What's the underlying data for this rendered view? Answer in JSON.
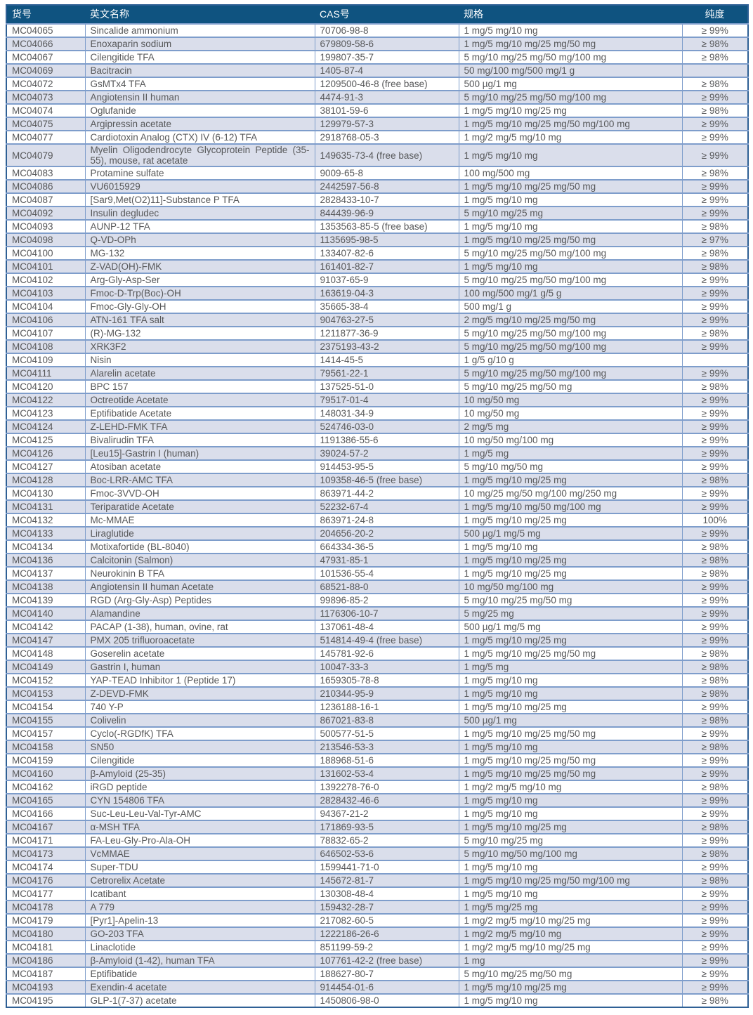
{
  "table": {
    "columns": [
      {
        "key": "catalog",
        "label": "货号"
      },
      {
        "key": "name",
        "label": "英文名称"
      },
      {
        "key": "cas",
        "label": "CAS号"
      },
      {
        "key": "spec",
        "label": "规格"
      },
      {
        "key": "purity",
        "label": "纯度"
      }
    ],
    "rows": [
      {
        "catalog": "MC04065",
        "name": "Sincalide ammonium",
        "cas": "70706-98-8",
        "spec": "1 mg/5 mg/10 mg",
        "purity": "≥ 99%"
      },
      {
        "catalog": "MC04066",
        "name": "Enoxaparin sodium",
        "cas": "679809-58-6",
        "spec": "1 mg/5 mg/10 mg/25 mg/50 mg",
        "purity": "≥ 98%"
      },
      {
        "catalog": "MC04067",
        "name": "Cilengitide TFA",
        "cas": "199807-35-7",
        "spec": "5 mg/10 mg/25 mg/50 mg/100 mg",
        "purity": "≥ 98%"
      },
      {
        "catalog": "MC04069",
        "name": "Bacitracin",
        "cas": "1405-87-4",
        "spec": "50 mg/100 mg/500 mg/1 g",
        "purity": ""
      },
      {
        "catalog": "MC04072",
        "name": "GsMTx4 TFA",
        "cas": "1209500-46-8 (free base)",
        "spec": "500 µg/1 mg",
        "purity": "≥ 98%"
      },
      {
        "catalog": "MC04073",
        "name": "Angiotensin II human",
        "cas": "4474-91-3",
        "spec": "5 mg/10 mg/25 mg/50 mg/100 mg",
        "purity": "≥ 99%"
      },
      {
        "catalog": "MC04074",
        "name": "Oglufanide",
        "cas": "38101-59-6",
        "spec": "1 mg/5 mg/10 mg/25 mg",
        "purity": "≥ 98%"
      },
      {
        "catalog": "MC04075",
        "name": "Argipressin acetate",
        "cas": "129979-57-3",
        "spec": "1 mg/5 mg/10 mg/25 mg/50 mg/100 mg",
        "purity": "≥ 99%"
      },
      {
        "catalog": "MC04077",
        "name": "Cardiotoxin Analog (CTX) IV (6-12) TFA",
        "cas": "2918768-05-3",
        "spec": "1 mg/2 mg/5 mg/10 mg",
        "purity": "≥ 99%"
      },
      {
        "catalog": "MC04079",
        "name": "Myelin Oligodendrocyte Glycoprotein Peptide (35-55), mouse, rat acetate",
        "cas": "149635-73-4 (free base)",
        "spec": "1 mg/5 mg/10 mg",
        "purity": "≥ 99%"
      },
      {
        "catalog": "MC04083",
        "name": "Protamine sulfate",
        "cas": "9009-65-8",
        "spec": "100 mg/500 mg",
        "purity": "≥ 98%"
      },
      {
        "catalog": "MC04086",
        "name": "VU6015929",
        "cas": "2442597-56-8",
        "spec": "1 mg/5 mg/10 mg/25 mg/50 mg",
        "purity": "≥ 99%"
      },
      {
        "catalog": "MC04087",
        "name": "[Sar9,Met(O2)11]-Substance P TFA",
        "cas": "2828433-10-7",
        "spec": "1 mg/5 mg/10 mg",
        "purity": "≥ 99%"
      },
      {
        "catalog": "MC04092",
        "name": "Insulin degludec",
        "cas": "844439-96-9",
        "spec": "5 mg/10 mg/25 mg",
        "purity": "≥ 99%"
      },
      {
        "catalog": "MC04093",
        "name": "AUNP-12 TFA",
        "cas": "1353563-85-5 (free base)",
        "spec": "1 mg/5 mg/10 mg",
        "purity": "≥ 98%"
      },
      {
        "catalog": "MC04098",
        "name": "Q-VD-OPh",
        "cas": "1135695-98-5",
        "spec": "1 mg/5 mg/10 mg/25 mg/50 mg",
        "purity": "≥ 97%"
      },
      {
        "catalog": "MC04100",
        "name": "MG-132",
        "cas": "133407-82-6",
        "spec": "5 mg/10 mg/25 mg/50 mg/100 mg",
        "purity": "≥ 98%"
      },
      {
        "catalog": "MC04101",
        "name": "Z-VAD(OH)-FMK",
        "cas": "161401-82-7",
        "spec": "1 mg/5 mg/10 mg",
        "purity": "≥ 98%"
      },
      {
        "catalog": "MC04102",
        "name": "Arg-Gly-Asp-Ser",
        "cas": "91037-65-9",
        "spec": "5 mg/10 mg/25 mg/50 mg/100 mg",
        "purity": "≥ 99%"
      },
      {
        "catalog": "MC04103",
        "name": "Fmoc-D-Trp(Boc)-OH",
        "cas": "163619-04-3",
        "spec": "100 mg/500 mg/1 g/5 g",
        "purity": "≥ 99%"
      },
      {
        "catalog": "MC04104",
        "name": "Fmoc-Gly-Gly-OH",
        "cas": "35665-38-4",
        "spec": "500 mg/1 g",
        "purity": "≥ 99%"
      },
      {
        "catalog": "MC04106",
        "name": "ATN-161 TFA salt",
        "cas": "904763-27-5",
        "spec": "2 mg/5 mg/10 mg/25 mg/50 mg",
        "purity": "≥ 99%"
      },
      {
        "catalog": "MC04107",
        "name": "(R)-MG-132",
        "cas": "1211877-36-9",
        "spec": "5 mg/10 mg/25 mg/50 mg/100 mg",
        "purity": "≥ 98%"
      },
      {
        "catalog": "MC04108",
        "name": "XRK3F2",
        "cas": "2375193-43-2",
        "spec": "5 mg/10 mg/25 mg/50 mg/100 mg",
        "purity": "≥ 99%"
      },
      {
        "catalog": "MC04109",
        "name": "Nisin",
        "cas": "1414-45-5",
        "spec": "1 g/5 g/10 g",
        "purity": ""
      },
      {
        "catalog": "MC04111",
        "name": "Alarelin acetate",
        "cas": "79561-22-1",
        "spec": "5 mg/10 mg/25 mg/50 mg/100 mg",
        "purity": "≥ 99%"
      },
      {
        "catalog": "MC04120",
        "name": "BPC 157",
        "cas": "137525-51-0",
        "spec": "5 mg/10 mg/25 mg/50 mg",
        "purity": "≥ 98%"
      },
      {
        "catalog": "MC04122",
        "name": "Octreotide Acetate",
        "cas": "79517-01-4",
        "spec": "10 mg/50 mg",
        "purity": "≥ 99%"
      },
      {
        "catalog": "MC04123",
        "name": "Eptifibatide Acetate",
        "cas": "148031-34-9",
        "spec": "10 mg/50 mg",
        "purity": "≥ 99%"
      },
      {
        "catalog": "MC04124",
        "name": "Z-LEHD-FMK TFA",
        "cas": "524746-03-0",
        "spec": "2 mg/5 mg",
        "purity": "≥ 99%"
      },
      {
        "catalog": "MC04125",
        "name": "Bivalirudin TFA",
        "cas": "1191386-55-6",
        "spec": "10 mg/50 mg/100 mg",
        "purity": "≥ 99%"
      },
      {
        "catalog": "MC04126",
        "name": "[Leu15]-Gastrin I (human)",
        "cas": "39024-57-2",
        "spec": "1 mg/5 mg",
        "purity": "≥ 99%"
      },
      {
        "catalog": "MC04127",
        "name": "Atosiban acetate",
        "cas": "914453-95-5",
        "spec": "5 mg/10 mg/50 mg",
        "purity": "≥ 99%"
      },
      {
        "catalog": "MC04128",
        "name": "Boc-LRR-AMC TFA",
        "cas": "109358-46-5 (free base)",
        "spec": "1 mg/5 mg/10 mg/25 mg",
        "purity": "≥ 98%"
      },
      {
        "catalog": "MC04130",
        "name": "Fmoc-3VVD-OH",
        "cas": "863971-44-2",
        "spec": "10 mg/25 mg/50 mg/100 mg/250 mg",
        "purity": "≥ 99%"
      },
      {
        "catalog": "MC04131",
        "name": "Teriparatide Acetate",
        "cas": "52232-67-4",
        "spec": "1 mg/5 mg/10 mg/50 mg/100 mg",
        "purity": "≥ 99%"
      },
      {
        "catalog": "MC04132",
        "name": "Mc-MMAE",
        "cas": "863971-24-8",
        "spec": "1 mg/5 mg/10 mg/25 mg",
        "purity": "100%"
      },
      {
        "catalog": "MC04133",
        "name": "Liraglutide",
        "cas": "204656-20-2",
        "spec": "500 µg/1 mg/5 mg",
        "purity": "≥ 99%"
      },
      {
        "catalog": "MC04134",
        "name": "Motixafortide (BL-8040)",
        "cas": "664334-36-5",
        "spec": "1 mg/5 mg/10 mg",
        "purity": "≥ 98%"
      },
      {
        "catalog": "MC04136",
        "name": "Calcitonin (Salmon)",
        "cas": "47931-85-1",
        "spec": "1 mg/5 mg/10 mg/25 mg",
        "purity": "≥ 98%"
      },
      {
        "catalog": "MC04137",
        "name": "Neurokinin B TFA",
        "cas": "101536-55-4",
        "spec": "1 mg/5 mg/10 mg/25 mg",
        "purity": "≥ 98%"
      },
      {
        "catalog": "MC04138",
        "name": "Angiotensin II human Acetate",
        "cas": "68521-88-0",
        "spec": "10 mg/50 mg/100 mg",
        "purity": "≥ 99%"
      },
      {
        "catalog": "MC04139",
        "name": "RGD (Arg-Gly-Asp) Peptides",
        "cas": "99896-85-2",
        "spec": "5 mg/10 mg/25 mg/50 mg",
        "purity": "≥ 99%"
      },
      {
        "catalog": "MC04140",
        "name": "Alamandine",
        "cas": "1176306-10-7",
        "spec": "5 mg/25 mg",
        "purity": "≥ 99%"
      },
      {
        "catalog": "MC04142",
        "name": "PACAP (1-38), human, ovine, rat",
        "cas": "137061-48-4",
        "spec": "500 µg/1 mg/5 mg",
        "purity": "≥ 99%"
      },
      {
        "catalog": "MC04147",
        "name": "PMX 205 trifluoroacetate",
        "cas": "514814-49-4 (free base)",
        "spec": "1 mg/5 mg/10 mg/25 mg",
        "purity": "≥ 99%"
      },
      {
        "catalog": "MC04148",
        "name": "Goserelin acetate",
        "cas": "145781-92-6",
        "spec": "1 mg/5 mg/10 mg/25 mg/50 mg",
        "purity": "≥ 98%"
      },
      {
        "catalog": "MC04149",
        "name": "Gastrin I, human",
        "cas": "10047-33-3",
        "spec": "1 mg/5 mg",
        "purity": "≥ 98%"
      },
      {
        "catalog": "MC04152",
        "name": "YAP-TEAD Inhibitor 1 (Peptide 17)",
        "cas": "1659305-78-8",
        "spec": "1 mg/5 mg/10 mg",
        "purity": "≥ 98%"
      },
      {
        "catalog": "MC04153",
        "name": "Z-DEVD-FMK",
        "cas": "210344-95-9",
        "spec": "1 mg/5 mg/10 mg",
        "purity": "≥ 98%"
      },
      {
        "catalog": "MC04154",
        "name": "740 Y-P",
        "cas": "1236188-16-1",
        "spec": "1 mg/5 mg/10 mg/25 mg",
        "purity": "≥ 99%"
      },
      {
        "catalog": "MC04155",
        "name": "Colivelin",
        "cas": "867021-83-8",
        "spec": "500 µg/1 mg",
        "purity": "≥ 98%"
      },
      {
        "catalog": "MC04157",
        "name": "Cyclo(-RGDfK) TFA",
        "cas": "500577-51-5",
        "spec": "1 mg/5 mg/10 mg/25 mg/50 mg",
        "purity": "≥ 99%"
      },
      {
        "catalog": "MC04158",
        "name": "SN50",
        "cas": "213546-53-3",
        "spec": "1 mg/5 mg/10 mg",
        "purity": "≥ 98%"
      },
      {
        "catalog": "MC04159",
        "name": "Cilengitide",
        "cas": "188968-51-6",
        "spec": "1 mg/5 mg/10 mg/25 mg/50 mg",
        "purity": "≥ 99%"
      },
      {
        "catalog": "MC04160",
        "name": "β-Amyloid (25-35)",
        "cas": "131602-53-4",
        "spec": "1 mg/5 mg/10 mg/25 mg/50 mg",
        "purity": "≥ 99%"
      },
      {
        "catalog": "MC04162",
        "name": "iRGD peptide",
        "cas": "1392278-76-0",
        "spec": "1 mg/2 mg/5 mg/10 mg",
        "purity": "≥ 98%"
      },
      {
        "catalog": "MC04165",
        "name": "CYN 154806 TFA",
        "cas": "2828432-46-6",
        "spec": "1 mg/5 mg/10 mg",
        "purity": "≥ 99%"
      },
      {
        "catalog": "MC04166",
        "name": "Suc-Leu-Leu-Val-Tyr-AMC",
        "cas": "94367-21-2",
        "spec": "1 mg/5 mg/10 mg",
        "purity": "≥ 99%"
      },
      {
        "catalog": "MC04167",
        "name": "α-MSH TFA",
        "cas": "171869-93-5",
        "spec": "1 mg/5 mg/10 mg/25 mg",
        "purity": "≥ 98%"
      },
      {
        "catalog": "MC04171",
        "name": "FA-Leu-Gly-Pro-Ala-OH",
        "cas": "78832-65-2",
        "spec": "5 mg/10 mg/25 mg",
        "purity": "≥ 99%"
      },
      {
        "catalog": "MC04173",
        "name": "VcMMAE",
        "cas": "646502-53-6",
        "spec": "5 mg/10 mg/50 mg/100 mg",
        "purity": "≥ 98%"
      },
      {
        "catalog": "MC04174",
        "name": "Super-TDU",
        "cas": "1599441-71-0",
        "spec": "1 mg/5 mg/10 mg",
        "purity": "≥ 99%"
      },
      {
        "catalog": "MC04176",
        "name": "Cetrorelix Acetate",
        "cas": "145672-81-7",
        "spec": "1 mg/5 mg/10 mg/25 mg/50 mg/100 mg",
        "purity": "≥ 98%"
      },
      {
        "catalog": "MC04177",
        "name": "Icatibant",
        "cas": "130308-48-4",
        "spec": "1 mg/5 mg/10 mg",
        "purity": "≥ 99%"
      },
      {
        "catalog": "MC04178",
        "name": "A 779",
        "cas": "159432-28-7",
        "spec": "1 mg/5 mg/25 mg",
        "purity": "≥ 99%"
      },
      {
        "catalog": "MC04179",
        "name": "[Pyr1]-Apelin-13",
        "cas": "217082-60-5",
        "spec": "1 mg/2 mg/5 mg/10 mg/25 mg",
        "purity": "≥ 99%"
      },
      {
        "catalog": "MC04180",
        "name": "GO-203 TFA",
        "cas": "1222186-26-6",
        "spec": "1 mg/2 mg/5 mg/10 mg",
        "purity": "≥ 99%"
      },
      {
        "catalog": "MC04181",
        "name": "Linaclotide",
        "cas": "851199-59-2",
        "spec": "1 mg/2 mg/5 mg/10 mg/25 mg",
        "purity": "≥ 99%"
      },
      {
        "catalog": "MC04186",
        "name": "β-Amyloid (1-42), human TFA",
        "cas": "107761-42-2 (free base)",
        "spec": "1 mg",
        "purity": "≥ 99%"
      },
      {
        "catalog": "MC04187",
        "name": "Eptifibatide",
        "cas": "188627-80-7",
        "spec": "5 mg/10 mg/25 mg/50 mg",
        "purity": "≥ 99%"
      },
      {
        "catalog": "MC04193",
        "name": "Exendin-4 acetate",
        "cas": "914454-01-6",
        "spec": "1 mg/5 mg/10 mg/25 mg",
        "purity": "≥ 99%"
      },
      {
        "catalog": "MC04195",
        "name": "GLP-1(7-37) acetate",
        "cas": "1450806-98-0",
        "spec": "1 mg/5 mg/10 mg",
        "purity": "≥ 98%"
      }
    ]
  },
  "colors": {
    "header_bg": "#0f5380",
    "header_text": "#ffffff",
    "alt_row_bg": "#dadeeb",
    "row_border": "#7e9dcb",
    "outer_border": "#2f6095",
    "body_text": "#57585a"
  }
}
